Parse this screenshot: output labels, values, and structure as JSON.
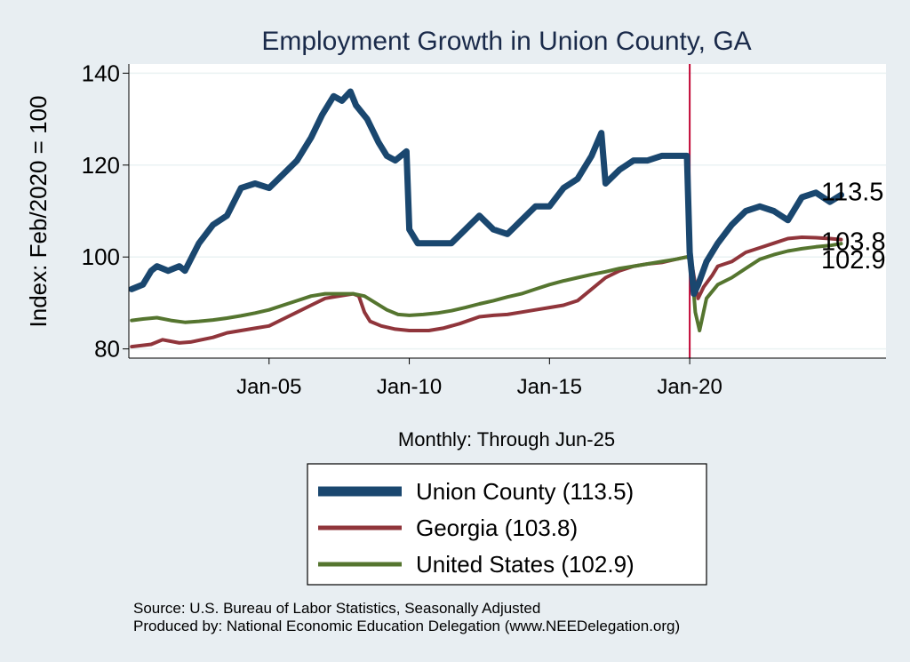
{
  "chart_data": {
    "type": "line",
    "title": "Employment Growth in Union  County, GA",
    "xlabel": "Monthly: Through Jun-25",
    "ylabel": "Index: Feb/2020 = 100",
    "xlim": [
      2000.0,
      2027.0
    ],
    "ylim": [
      78,
      142
    ],
    "y_ticks": [
      80,
      100,
      120,
      140
    ],
    "x_ticks": [
      {
        "value": 2005.0,
        "label": "Jan-05"
      },
      {
        "value": 2010.0,
        "label": "Jan-10"
      },
      {
        "value": 2015.0,
        "label": "Jan-15"
      },
      {
        "value": 2020.0,
        "label": "Jan-20"
      }
    ],
    "reference_line_x": 2020.0,
    "series": [
      {
        "name": "Union  County",
        "legend_label": "Union  County (113.5)",
        "end_label": "113.5",
        "color": "#1a476f",
        "x": [
          2000.1,
          2000.5,
          2000.8,
          2001.0,
          2001.4,
          2001.8,
          2002.0,
          2002.5,
          2003.0,
          2003.5,
          2004.0,
          2004.5,
          2005.0,
          2005.5,
          2006.0,
          2006.5,
          2006.9,
          2007.3,
          2007.6,
          2007.9,
          2008.1,
          2008.5,
          2008.9,
          2009.2,
          2009.5,
          2009.9,
          2010.0,
          2010.3,
          2010.8,
          2011.5,
          2012.0,
          2012.5,
          2013.0,
          2013.5,
          2014.0,
          2014.5,
          2015.0,
          2015.5,
          2016.0,
          2016.5,
          2016.85,
          2017.0,
          2017.5,
          2018.0,
          2018.5,
          2019.0,
          2019.5,
          2019.8,
          2019.9,
          2020.0,
          2020.15,
          2020.3,
          2020.6,
          2021.0,
          2021.5,
          2022.0,
          2022.5,
          2023.0,
          2023.5,
          2024.0,
          2024.5,
          2025.0,
          2025.4
        ],
        "values": [
          93,
          94,
          97,
          98,
          97,
          98,
          97,
          103,
          107,
          109,
          115,
          116,
          115,
          118,
          121,
          126,
          131,
          135,
          134,
          136,
          133,
          130,
          125,
          122,
          121,
          123,
          106,
          103,
          103,
          103,
          106,
          109,
          106,
          105,
          108,
          111,
          111,
          115,
          117,
          122,
          127,
          116,
          119,
          121,
          121,
          122,
          122,
          122,
          122,
          101,
          92,
          94,
          99,
          103,
          107,
          110,
          111,
          110,
          108,
          113,
          114,
          112,
          113.5
        ]
      },
      {
        "name": "Georgia",
        "legend_label": "Georgia (103.8)",
        "end_label": "103.8",
        "color": "#90353b",
        "x": [
          2000.1,
          2000.8,
          2001.2,
          2001.8,
          2002.2,
          2003.0,
          2003.5,
          2004.0,
          2004.5,
          2005.0,
          2005.5,
          2006.0,
          2006.5,
          2007.0,
          2007.5,
          2008.0,
          2008.2,
          2008.4,
          2008.6,
          2009.0,
          2009.5,
          2010.0,
          2010.7,
          2011.2,
          2011.8,
          2012.5,
          2013.0,
          2013.5,
          2014.0,
          2014.5,
          2015.0,
          2015.5,
          2016.0,
          2016.5,
          2017.0,
          2017.5,
          2018.0,
          2018.5,
          2019.0,
          2019.5,
          2019.9,
          2020.05,
          2020.2,
          2020.3,
          2020.5,
          2020.8,
          2021.0,
          2021.5,
          2022.0,
          2022.5,
          2023.0,
          2023.5,
          2024.0,
          2024.5,
          2025.0,
          2025.4
        ],
        "values": [
          80.5,
          81,
          82,
          81.3,
          81.5,
          82.5,
          83.5,
          84,
          84.5,
          85,
          86.5,
          88,
          89.5,
          91,
          91.5,
          92,
          91.5,
          88,
          86,
          85,
          84.3,
          84,
          84,
          84.5,
          85.5,
          87,
          87.3,
          87.5,
          88,
          88.5,
          89,
          89.5,
          90.5,
          93,
          95.5,
          97,
          98,
          98.5,
          98.8,
          99.5,
          100,
          99.5,
          94,
          91,
          93.5,
          96,
          98,
          99,
          101,
          102,
          103,
          104,
          104.3,
          104.2,
          104,
          103.8
        ]
      },
      {
        "name": "United States",
        "legend_label": "United States (102.9)",
        "end_label": "102.9",
        "color": "#55752f",
        "x": [
          2000.1,
          2000.5,
          2001.0,
          2001.5,
          2002.0,
          2002.5,
          2003.0,
          2003.5,
          2004.0,
          2004.5,
          2005.0,
          2005.5,
          2006.0,
          2006.5,
          2007.0,
          2007.5,
          2008.0,
          2008.4,
          2008.8,
          2009.2,
          2009.6,
          2010.0,
          2010.5,
          2011.0,
          2011.5,
          2012.0,
          2012.5,
          2013.0,
          2013.5,
          2014.0,
          2014.5,
          2015.0,
          2015.5,
          2016.0,
          2016.5,
          2017.0,
          2017.5,
          2018.0,
          2018.5,
          2019.0,
          2019.5,
          2019.9,
          2020.05,
          2020.2,
          2020.35,
          2020.6,
          2021.0,
          2021.5,
          2022.0,
          2022.5,
          2023.0,
          2023.5,
          2024.0,
          2024.5,
          2025.0,
          2025.4
        ],
        "values": [
          86.2,
          86.5,
          86.8,
          86.2,
          85.8,
          86,
          86.3,
          86.7,
          87.2,
          87.8,
          88.5,
          89.5,
          90.5,
          91.5,
          92,
          92,
          92,
          91.5,
          90,
          88.5,
          87.5,
          87.3,
          87.5,
          87.8,
          88.3,
          89,
          89.8,
          90.5,
          91.3,
          92,
          93,
          94,
          94.8,
          95.5,
          96.2,
          96.8,
          97.5,
          98,
          98.5,
          99,
          99.5,
          100,
          99.5,
          88,
          84,
          91,
          94,
          95.5,
          97.5,
          99.5,
          100.5,
          101.3,
          101.8,
          102.2,
          102.5,
          102.9
        ]
      }
    ],
    "source_note": "Source: U.S. Bureau of Labor Statistics, Seasonally Adjusted",
    "producer_note": "Produced by: National Economic Education Delegation (www.NEEDelegation.org)"
  }
}
